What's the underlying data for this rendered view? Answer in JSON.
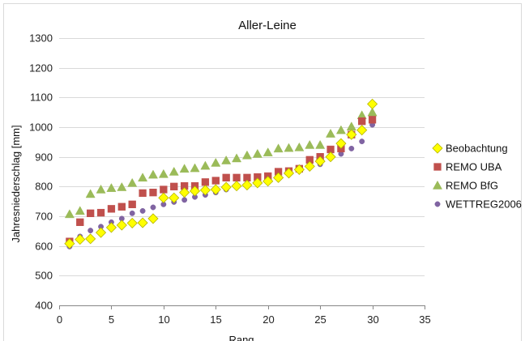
{
  "chart_data": {
    "type": "scatter",
    "title": "Aller-Leine",
    "xlabel": "Rang",
    "ylabel": "Jahresniederschlag [mm]",
    "xlim": [
      0,
      35
    ],
    "ylim": [
      400,
      1300
    ],
    "xticks": [
      0,
      5,
      10,
      15,
      20,
      25,
      30,
      35
    ],
    "yticks": [
      400,
      500,
      600,
      700,
      800,
      900,
      1000,
      1100,
      1200,
      1300
    ],
    "grid": "horizontal",
    "legend_position": "right",
    "x": [
      1,
      2,
      3,
      4,
      5,
      6,
      7,
      8,
      9,
      10,
      11,
      12,
      13,
      14,
      15,
      16,
      17,
      18,
      19,
      20,
      21,
      22,
      23,
      24,
      25,
      26,
      27,
      28,
      29,
      30
    ],
    "series": [
      {
        "name": "Beobachtung",
        "marker": "diamond",
        "color": "#ffff00",
        "stroke": "#b5b500",
        "values": [
          608,
          622,
          624,
          645,
          662,
          670,
          677,
          678,
          692,
          762,
          762,
          780,
          785,
          788,
          790,
          798,
          802,
          805,
          812,
          818,
          830,
          845,
          857,
          868,
          885,
          900,
          945,
          975,
          990,
          1078
        ]
      },
      {
        "name": "REMO UBA",
        "marker": "square",
        "color": "#c0504d",
        "stroke": "#c0504d",
        "values": [
          615,
          680,
          710,
          712,
          725,
          732,
          740,
          778,
          780,
          790,
          800,
          802,
          802,
          815,
          820,
          830,
          830,
          830,
          832,
          835,
          850,
          852,
          860,
          890,
          900,
          925,
          928,
          975,
          1020,
          1025
        ]
      },
      {
        "name": "REMO BfG",
        "marker": "triangle",
        "color": "#9bbb59",
        "stroke": "#9bbb59",
        "values": [
          707,
          718,
          775,
          790,
          795,
          798,
          812,
          830,
          840,
          842,
          850,
          860,
          862,
          870,
          880,
          888,
          895,
          905,
          910,
          915,
          928,
          930,
          932,
          940,
          940,
          978,
          990,
          1002,
          1040,
          1050
        ]
      },
      {
        "name": "WETTREG2006",
        "marker": "circle",
        "color": "#8064a2",
        "stroke": "#8064a2",
        "values": [
          598,
          632,
          652,
          665,
          680,
          692,
          710,
          718,
          730,
          740,
          748,
          755,
          765,
          772,
          780,
          790,
          798,
          808,
          815,
          822,
          835,
          848,
          855,
          868,
          875,
          895,
          910,
          928,
          952,
          1008
        ]
      }
    ]
  }
}
